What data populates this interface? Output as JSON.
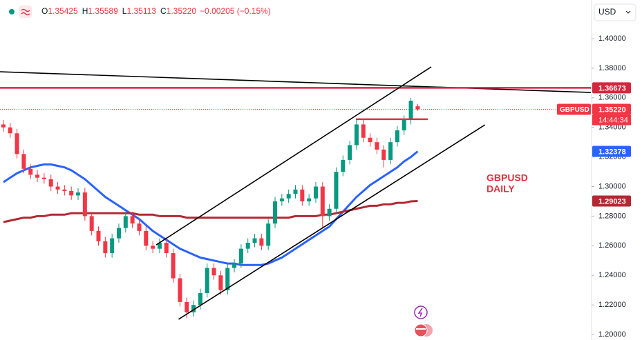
{
  "header": {
    "items": [
      {
        "key": "O",
        "value": "1.35425"
      },
      {
        "key": "H",
        "value": "1.35589"
      },
      {
        "key": "L",
        "value": "1.35113"
      },
      {
        "key": "C",
        "value": "1.35220"
      }
    ],
    "change": "−0.00205 (−0.15%)",
    "currency": "USD"
  },
  "chart_data": {
    "type": "candlestick",
    "xlim": [
      0,
      87
    ],
    "ylim": [
      1.1963,
      1.4261
    ],
    "yticks": [
      {
        "value": 1.4,
        "label": "1.40000"
      },
      {
        "value": 1.38,
        "label": "1.38000"
      },
      {
        "value": 1.36,
        "label": "1.36000"
      },
      {
        "value": 1.34,
        "label": "1.34000"
      },
      {
        "value": 1.32,
        "label": "1.32000"
      },
      {
        "value": 1.3,
        "label": "1.30000"
      },
      {
        "value": 1.28,
        "label": "1.28000"
      },
      {
        "value": 1.26,
        "label": "1.26000"
      },
      {
        "value": 1.24,
        "label": "1.24000"
      },
      {
        "value": 1.22,
        "label": "1.22000"
      },
      {
        "value": 1.2,
        "label": "1.20000"
      }
    ],
    "up_color": "#089981",
    "down_color": "#f23645",
    "open": [
      1.342,
      1.34,
      1.336,
      1.322,
      1.312,
      1.308,
      1.306,
      1.305,
      1.3,
      1.298,
      1.297,
      1.294,
      1.296,
      1.28,
      1.27,
      1.263,
      1.255,
      1.265,
      1.272,
      1.28,
      1.275,
      1.27,
      1.26,
      1.258,
      1.262,
      1.255,
      1.238,
      1.222,
      1.215,
      1.22,
      1.228,
      1.245,
      1.24,
      1.23,
      1.245,
      1.248,
      1.258,
      1.262,
      1.265,
      1.26,
      1.275,
      1.29,
      1.292,
      1.295,
      1.298,
      1.29,
      1.292,
      1.3,
      1.28,
      1.285,
      1.31,
      1.318,
      1.328,
      1.342,
      1.333,
      1.33,
      1.325,
      1.318,
      1.33,
      1.338,
      1.345,
      1.35425
    ],
    "high": [
      1.345,
      1.343,
      1.339,
      1.325,
      1.315,
      1.311,
      1.309,
      1.308,
      1.303,
      1.301,
      1.3,
      1.299,
      1.299,
      1.283,
      1.273,
      1.266,
      1.268,
      1.275,
      1.283,
      1.283,
      1.278,
      1.273,
      1.263,
      1.265,
      1.265,
      1.258,
      1.241,
      1.225,
      1.223,
      1.231,
      1.248,
      1.248,
      1.243,
      1.248,
      1.251,
      1.261,
      1.265,
      1.268,
      1.268,
      1.278,
      1.293,
      1.295,
      1.298,
      1.301,
      1.301,
      1.295,
      1.303,
      1.303,
      1.288,
      1.313,
      1.321,
      1.331,
      1.345,
      1.345,
      1.336,
      1.333,
      1.328,
      1.333,
      1.341,
      1.348,
      1.36,
      1.35589
    ],
    "low": [
      1.337,
      1.333,
      1.319,
      1.309,
      1.305,
      1.303,
      1.302,
      1.297,
      1.295,
      1.294,
      1.291,
      1.291,
      1.277,
      1.267,
      1.26,
      1.252,
      1.252,
      1.262,
      1.269,
      1.272,
      1.267,
      1.257,
      1.255,
      1.255,
      1.252,
      1.235,
      1.219,
      1.211,
      1.212,
      1.217,
      1.225,
      1.237,
      1.227,
      1.227,
      1.242,
      1.245,
      1.255,
      1.259,
      1.257,
      1.257,
      1.272,
      1.287,
      1.289,
      1.292,
      1.287,
      1.287,
      1.289,
      1.272,
      1.277,
      1.282,
      1.307,
      1.315,
      1.325,
      1.33,
      1.327,
      1.322,
      1.313,
      1.315,
      1.327,
      1.335,
      1.342,
      1.35113
    ],
    "close": [
      1.34,
      1.336,
      1.322,
      1.312,
      1.308,
      1.306,
      1.305,
      1.3,
      1.298,
      1.297,
      1.294,
      1.296,
      1.28,
      1.27,
      1.263,
      1.255,
      1.265,
      1.272,
      1.28,
      1.275,
      1.27,
      1.26,
      1.258,
      1.262,
      1.255,
      1.238,
      1.222,
      1.215,
      1.22,
      1.228,
      1.245,
      1.24,
      1.23,
      1.245,
      1.248,
      1.258,
      1.262,
      1.265,
      1.26,
      1.275,
      1.29,
      1.292,
      1.295,
      1.298,
      1.29,
      1.292,
      1.3,
      1.28,
      1.285,
      1.31,
      1.318,
      1.328,
      1.342,
      1.333,
      1.33,
      1.325,
      1.318,
      1.33,
      1.338,
      1.345,
      1.358,
      1.3522
    ],
    "series": [
      {
        "color": "#2962ff",
        "values": [
          1.303,
          1.306,
          1.309,
          1.311,
          1.313,
          1.314,
          1.315,
          1.315,
          1.314,
          1.313,
          1.311,
          1.308,
          1.305,
          1.301,
          1.297,
          1.293,
          1.29,
          1.287,
          1.284,
          1.281,
          1.278,
          1.274,
          1.27,
          1.267,
          1.264,
          1.261,
          1.258,
          1.256,
          1.254,
          1.252,
          1.251,
          1.25,
          1.249,
          1.248,
          1.248,
          1.247,
          1.247,
          1.247,
          1.247,
          1.248,
          1.25,
          1.252,
          1.255,
          1.258,
          1.261,
          1.264,
          1.267,
          1.27,
          1.273,
          1.278,
          1.283,
          1.288,
          1.293,
          1.297,
          1.301,
          1.304,
          1.307,
          1.31,
          1.313,
          1.317,
          1.32,
          1.32378
        ]
      },
      {
        "color": "#b22833",
        "values": [
          1.276,
          1.277,
          1.278,
          1.279,
          1.279,
          1.28,
          1.28,
          1.281,
          1.281,
          1.281,
          1.282,
          1.282,
          1.282,
          1.282,
          1.282,
          1.282,
          1.282,
          1.282,
          1.282,
          1.282,
          1.281,
          1.281,
          1.281,
          1.28,
          1.28,
          1.28,
          1.28,
          1.279,
          1.279,
          1.279,
          1.279,
          1.279,
          1.279,
          1.279,
          1.279,
          1.279,
          1.279,
          1.279,
          1.279,
          1.279,
          1.279,
          1.279,
          1.279,
          1.28,
          1.28,
          1.28,
          1.28,
          1.281,
          1.281,
          1.282,
          1.283,
          1.284,
          1.285,
          1.286,
          1.287,
          1.287,
          1.288,
          1.288,
          1.289,
          1.289,
          1.29,
          1.29023
        ]
      }
    ],
    "lines": [
      {
        "color": "#000000",
        "x": [
          0,
          87
        ],
        "y": [
          1.3776,
          1.3636
        ]
      },
      {
        "color": "#d6263d",
        "x": [
          0,
          87
        ],
        "y": [
          1.36673,
          1.36673
        ]
      },
      {
        "color": "#000000",
        "x": [
          23,
          63.5
        ],
        "y": [
          1.2606,
          1.3809
        ]
      },
      {
        "color": "#000000",
        "x": [
          26.3,
          71.4
        ],
        "y": [
          1.2103,
          1.3417
        ]
      },
      {
        "color": "#e0303f",
        "x": [
          52.4,
          63
        ],
        "y": [
          1.3455,
          1.3455
        ]
      }
    ],
    "last_price": {
      "value": 1.3522,
      "label": "1.35220",
      "color": "#f23645",
      "symbol": "GBPUSD",
      "countdown": "14:44:34"
    },
    "price_labels": [
      {
        "value": 1.36673,
        "label": "1.36673",
        "color": "#d6263d"
      },
      {
        "value": 1.32378,
        "label": "1.32378",
        "color": "#2962ff"
      },
      {
        "value": 1.29023,
        "label": "1.29023",
        "color": "#b22833"
      }
    ],
    "annotation": [
      "GBPUSD",
      "DAILY"
    ],
    "annotation_color": "#e0303f"
  }
}
